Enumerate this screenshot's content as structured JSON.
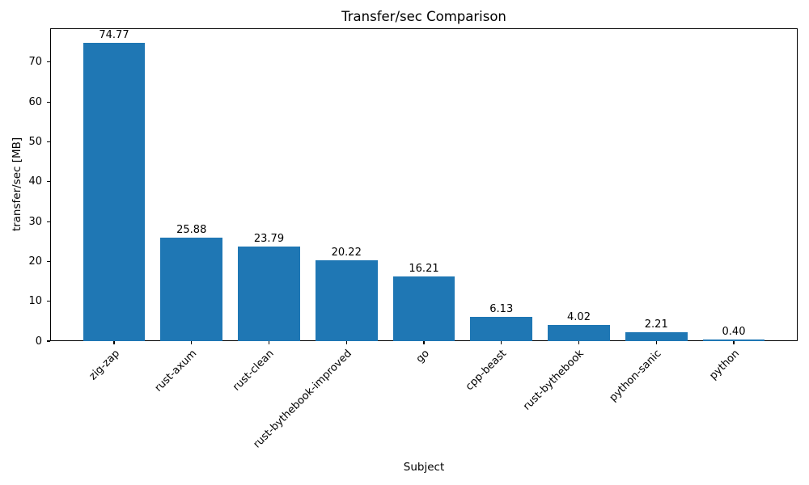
{
  "chart_data": {
    "type": "bar",
    "title": "Transfer/sec Comparison",
    "xlabel": "Subject",
    "ylabel": "transfer/sec [MB]",
    "categories": [
      "zig-zap",
      "rust-axum",
      "rust-clean",
      "rust-bythebook-improved",
      "go",
      "cpp-beast",
      "rust-bythebook",
      "python-sanic",
      "python"
    ],
    "values": [
      74.77,
      25.88,
      23.79,
      20.22,
      16.21,
      6.13,
      4.02,
      2.21,
      0.4
    ],
    "value_labels": [
      "74.77",
      "25.88",
      "23.79",
      "20.22",
      "16.21",
      "6.13",
      "4.02",
      "2.21",
      "0.40"
    ],
    "bar_color": "#1f77b4",
    "axis_color": "#000000",
    "ylim": [
      0,
      78.5
    ],
    "yticks": [
      0,
      10,
      20,
      30,
      40,
      50,
      60,
      70
    ],
    "bar_width_fraction": 0.8,
    "x_tick_rotation_deg": 45,
    "grid": false,
    "legend": null
  }
}
